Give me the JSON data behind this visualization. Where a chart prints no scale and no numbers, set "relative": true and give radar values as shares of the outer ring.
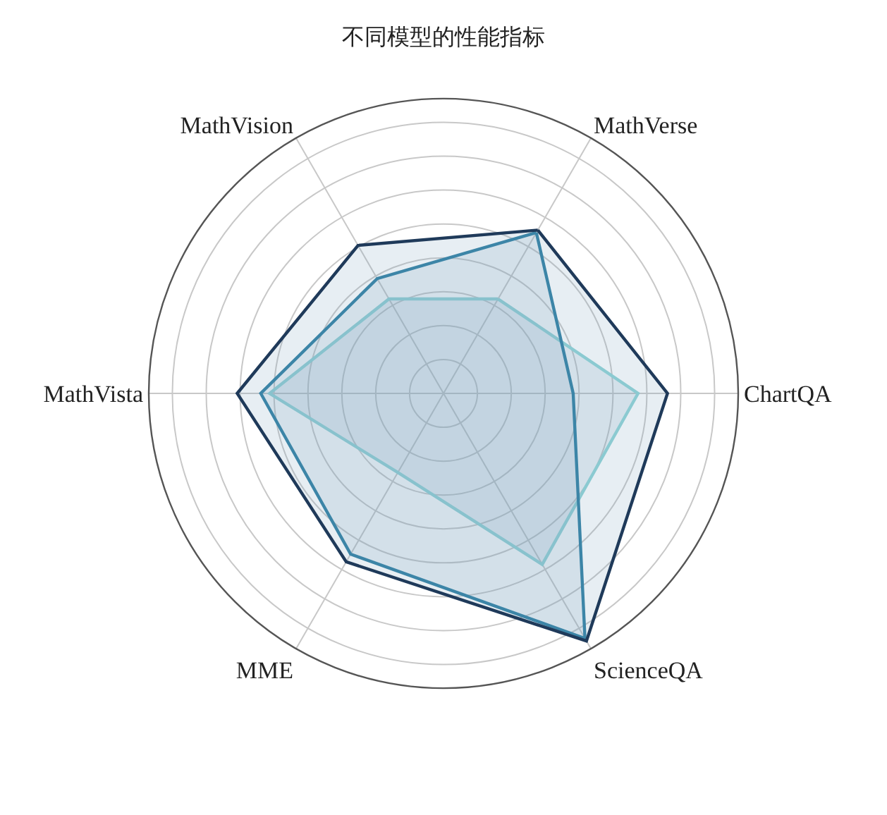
{
  "chart_data": {
    "type": "radar",
    "title": "不同模型的性能指标",
    "relative": true,
    "categories": [
      "MathVerse",
      "ChartQA",
      "ScienceQA",
      "MME",
      "MathVista",
      "MathVision"
    ],
    "series": [
      {
        "color": "#8fd3d6",
        "values": [
          0.37,
          0.66,
          0.67,
          0.31,
          0.59,
          0.37
        ]
      },
      {
        "color": "#2f7fa3",
        "values": [
          0.63,
          0.44,
          0.96,
          0.63,
          0.62,
          0.45
        ]
      },
      {
        "color": "#1f3a5a",
        "values": [
          0.64,
          0.76,
          0.97,
          0.66,
          0.7,
          0.58
        ]
      }
    ]
  }
}
